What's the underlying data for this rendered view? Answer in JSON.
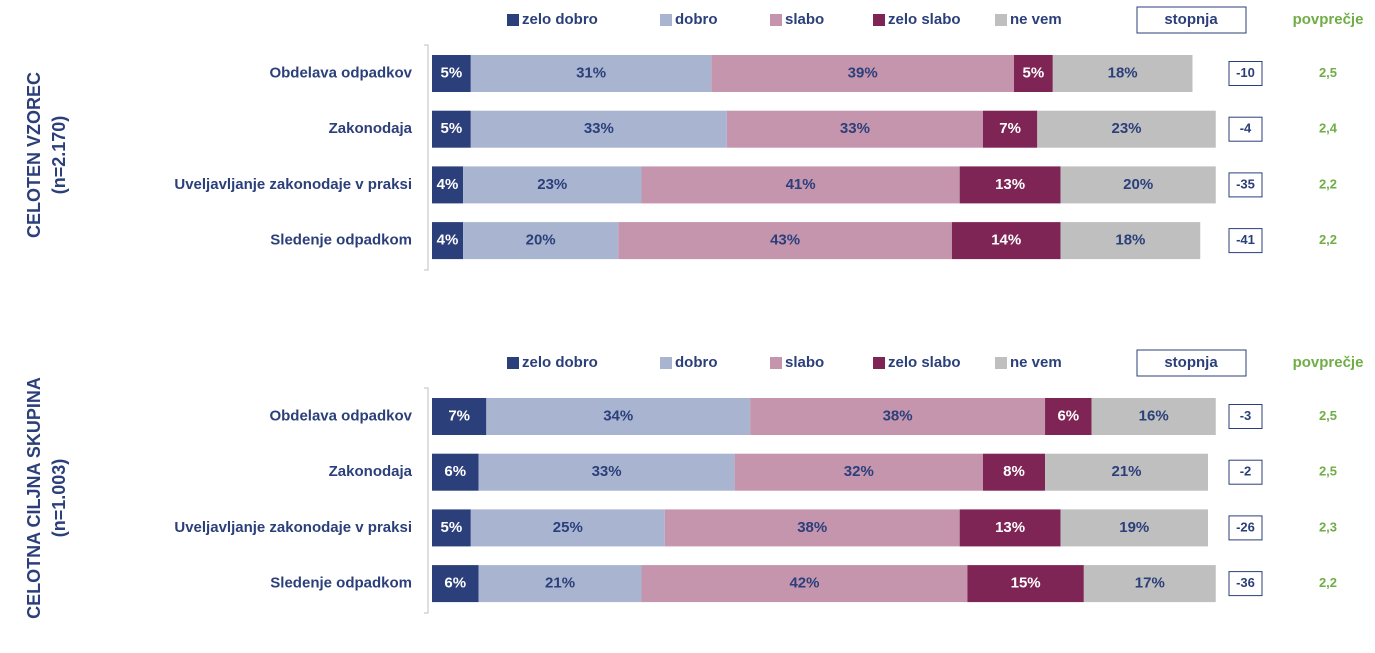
{
  "chart_data": [
    {
      "type": "bar",
      "orientation": "horizontal",
      "stacked": true,
      "title": "CELOTEN VZOREC",
      "subtitle": "(n=2.170)",
      "categories": [
        "Obdelava odpadkov",
        "Zakonodaja",
        "Uveljavljanje zakonodaje v praksi",
        "Sledenje odpadkom"
      ],
      "xlim": [
        0,
        100
      ],
      "series": [
        {
          "name": "zelo dobro",
          "color": "#2b3f7a",
          "values": [
            5,
            5,
            4,
            4
          ],
          "value_labels": [
            "5%",
            "5%",
            "4%",
            "4%"
          ]
        },
        {
          "name": "dobro",
          "color": "#a9b5d0",
          "values": [
            31,
            33,
            23,
            20
          ],
          "value_labels": [
            "31%",
            "33%",
            "23%",
            "20%"
          ]
        },
        {
          "name": "slabo",
          "color": "#c595ad",
          "values": [
            39,
            33,
            41,
            43
          ],
          "value_labels": [
            "39%",
            "33%",
            "41%",
            "43%"
          ]
        },
        {
          "name": "zelo slabo",
          "color": "#7f2556",
          "values": [
            5,
            7,
            13,
            14
          ],
          "value_labels": [
            "5%",
            "7%",
            "13%",
            "14%"
          ]
        },
        {
          "name": "ne vem",
          "color": "#bfbfbf",
          "values": [
            18,
            23,
            20,
            18
          ],
          "value_labels": [
            "18%",
            "23%",
            "20%",
            "18%"
          ]
        }
      ],
      "net": {
        "name": "stopnja",
        "values": [
          -10,
          -4,
          -35,
          -41
        ]
      },
      "mean": {
        "name": "povprečje",
        "color": "#70ad47",
        "values": [
          2.5,
          2.4,
          2.2,
          2.2
        ],
        "value_labels": [
          "2,5",
          "2,4",
          "2,2",
          "2,2"
        ]
      }
    },
    {
      "type": "bar",
      "orientation": "horizontal",
      "stacked": true,
      "title": "CELOTNA CILJNA SKUPINA",
      "subtitle": "(n=1.003)",
      "categories": [
        "Obdelava odpadkov",
        "Zakonodaja",
        "Uveljavljanje zakonodaje v praksi",
        "Sledenje odpadkom"
      ],
      "xlim": [
        0,
        100
      ],
      "series": [
        {
          "name": "zelo dobro",
          "color": "#2b3f7a",
          "values": [
            7,
            6,
            5,
            6
          ],
          "value_labels": [
            "7%",
            "6%",
            "5%",
            "6%"
          ]
        },
        {
          "name": "dobro",
          "color": "#a9b5d0",
          "values": [
            34,
            33,
            25,
            21
          ],
          "value_labels": [
            "34%",
            "33%",
            "25%",
            "21%"
          ]
        },
        {
          "name": "slabo",
          "color": "#c595ad",
          "values": [
            38,
            32,
            38,
            42
          ],
          "value_labels": [
            "38%",
            "32%",
            "38%",
            "42%"
          ]
        },
        {
          "name": "zelo slabo",
          "color": "#7f2556",
          "values": [
            6,
            8,
            13,
            15
          ],
          "value_labels": [
            "6%",
            "8%",
            "13%",
            "15%"
          ]
        },
        {
          "name": "ne vem",
          "color": "#bfbfbf",
          "values": [
            16,
            21,
            19,
            17
          ],
          "value_labels": [
            "16%",
            "21%",
            "19%",
            "17%"
          ]
        }
      ],
      "net": {
        "name": "stopnja",
        "values": [
          -3,
          -2,
          -26,
          -36
        ]
      },
      "mean": {
        "name": "povprečje",
        "color": "#70ad47",
        "values": [
          2.5,
          2.5,
          2.3,
          2.2
        ],
        "value_labels": [
          "2,5",
          "2,5",
          "2,3",
          "2,2"
        ]
      }
    }
  ]
}
